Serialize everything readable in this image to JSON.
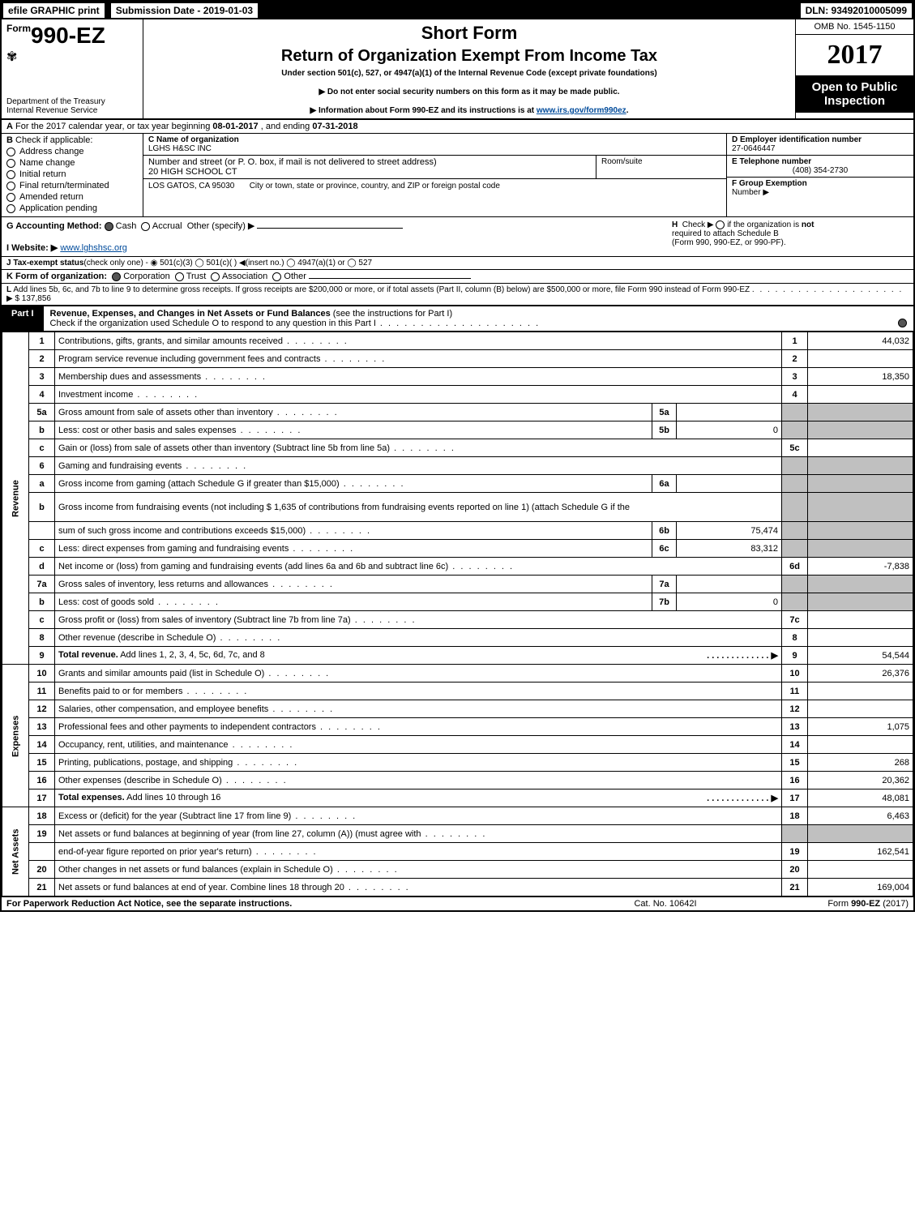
{
  "topbar": {
    "efile": "efile GRAPHIC print",
    "submission": "Submission Date - 2019-01-03",
    "dln": "DLN: 93492010005099"
  },
  "header": {
    "form_word": "Form",
    "form_number": "990-EZ",
    "dept1": "Department of the Treasury",
    "dept2": "Internal Revenue Service",
    "title1": "Short Form",
    "title2": "Return of Organization Exempt From Income Tax",
    "subtitle": "Under section 501(c), 527, or 4947(a)(1) of the Internal Revenue Code (except private foundations)",
    "note1": "▶ Do not enter social security numbers on this form as it may be made public.",
    "note2_pre": "▶ Information about Form 990-EZ and its instructions is at ",
    "note2_link": "www.irs.gov/form990ez",
    "note2_post": ".",
    "omb": "OMB No. 1545-1150",
    "year": "2017",
    "open1": "Open to Public",
    "open2": "Inspection"
  },
  "line_a": {
    "a_label": "A",
    "text_pre": "For the 2017 calendar year, or tax year beginning ",
    "begin": "08-01-2017",
    "mid": ", and ending ",
    "end": "07-31-2018"
  },
  "block_b": {
    "b_label": "B",
    "check_if": "Check if applicable:",
    "items": [
      "Address change",
      "Name change",
      "Initial return",
      "Final return/terminated",
      "Amended return",
      "Application pending"
    ]
  },
  "block_c": {
    "c_label": "C Name of organization",
    "org_name": "LGHS H&SC INC",
    "addr_label": "Number and street (or P. O. box, if mail is not delivered to street address)",
    "addr": "20 HIGH SCHOOL CT",
    "room_label": "Room/suite",
    "city_label": "City or town, state or province, country, and ZIP or foreign postal code",
    "city": "LOS GATOS, CA  95030"
  },
  "block_d": {
    "d_label": "D Employer identification number",
    "ein": "27-0646447",
    "e_label": "E Telephone number",
    "phone": "(408) 354-2730",
    "f_label": "F Group Exemption",
    "f_label2": "Number  ▶"
  },
  "block_g": {
    "g_label": "G Accounting Method:",
    "cash": "Cash",
    "accrual": "Accrual",
    "other": "Other (specify) ▶"
  },
  "block_h": {
    "h_label": "H",
    "text1": "Check ▶",
    "text2": "if the organization is ",
    "not": "not",
    "text3": "required to attach Schedule B",
    "text4": "(Form 990, 990-EZ, or 990-PF)."
  },
  "block_i": {
    "i_label": "I Website: ▶",
    "website": "www.lghshsc.org"
  },
  "line_j": {
    "j_label": "J Tax-exempt status",
    "text": "(check only one) - ◉ 501(c)(3) ◯ 501(c)(  ) ◀(insert no.) ◯ 4947(a)(1) or ◯ 527"
  },
  "line_k": {
    "k_label": "K Form of organization:",
    "corp": "Corporation",
    "trust": "Trust",
    "assoc": "Association",
    "other": "Other"
  },
  "line_l": {
    "l_label": "L",
    "text": "Add lines 5b, 6c, and 7b to line 9 to determine gross receipts. If gross receipts are $200,000 or more, or if total assets (Part II, column (B) below) are $500,000 or more, file Form 990 instead of Form 990-EZ",
    "arrow": "▶ $ 137,856"
  },
  "part1": {
    "badge": "Part I",
    "title_b": "Revenue, Expenses, and Changes in Net Assets or Fund Balances",
    "title_rest": " (see the instructions for Part I)",
    "sub": "Check if the organization used Schedule O to respond to any question in this Part I"
  },
  "sections": {
    "revenue": "Revenue",
    "expenses": "Expenses",
    "netassets": "Net Assets"
  },
  "rows": [
    {
      "sec": "rev",
      "n": "1",
      "desc": "Contributions, gifts, grants, and similar amounts received",
      "res_n": "1",
      "res_v": "44,032"
    },
    {
      "sec": "rev",
      "n": "2",
      "desc": "Program service revenue including government fees and contracts",
      "res_n": "2",
      "res_v": ""
    },
    {
      "sec": "rev",
      "n": "3",
      "desc": "Membership dues and assessments",
      "res_n": "3",
      "res_v": "18,350"
    },
    {
      "sec": "rev",
      "n": "4",
      "desc": "Investment income",
      "res_n": "4",
      "res_v": ""
    },
    {
      "sec": "rev",
      "n": "5a",
      "desc": "Gross amount from sale of assets other than inventory",
      "sub_n": "5a",
      "sub_v": "",
      "grey_res": true
    },
    {
      "sec": "rev",
      "n": "b",
      "desc": "Less: cost or other basis and sales expenses",
      "sub_n": "5b",
      "sub_v": "0",
      "grey_res": true
    },
    {
      "sec": "rev",
      "n": "c",
      "desc": "Gain or (loss) from sale of assets other than inventory (Subtract line 5b from line 5a)",
      "res_n": "5c",
      "res_v": ""
    },
    {
      "sec": "rev",
      "n": "6",
      "desc": "Gaming and fundraising events",
      "grey_sub": true,
      "grey_res": true
    },
    {
      "sec": "rev",
      "n": "a",
      "desc": "Gross income from gaming (attach Schedule G if greater than $15,000)",
      "sub_n": "6a",
      "sub_v": "",
      "grey_res": true
    },
    {
      "sec": "rev",
      "n": "b",
      "desc": "Gross income from fundraising events (not including $  1,635     of contributions from fundraising events reported on line 1) (attach Schedule G if the",
      "grey_res": true,
      "no_sub": true,
      "tall": true
    },
    {
      "sec": "rev",
      "n": "",
      "desc": "sum of such gross income and contributions exceeds $15,000)",
      "sub_n": "6b",
      "sub_v": "75,474",
      "grey_res": true
    },
    {
      "sec": "rev",
      "n": "c",
      "desc": "Less: direct expenses from gaming and fundraising events",
      "sub_n": "6c",
      "sub_v": "83,312",
      "grey_res": true
    },
    {
      "sec": "rev",
      "n": "d",
      "desc": "Net income or (loss) from gaming and fundraising events (add lines 6a and 6b and subtract line 6c)",
      "res_n": "6d",
      "res_v": "-7,838"
    },
    {
      "sec": "rev",
      "n": "7a",
      "desc": "Gross sales of inventory, less returns and allowances",
      "sub_n": "7a",
      "sub_v": "",
      "grey_res": true
    },
    {
      "sec": "rev",
      "n": "b",
      "desc": "Less: cost of goods sold",
      "sub_n": "7b",
      "sub_v": "0",
      "grey_res": true
    },
    {
      "sec": "rev",
      "n": "c",
      "desc": "Gross profit or (loss) from sales of inventory (Subtract line 7b from line 7a)",
      "res_n": "7c",
      "res_v": ""
    },
    {
      "sec": "rev",
      "n": "8",
      "desc": "Other revenue (describe in Schedule O)",
      "res_n": "8",
      "res_v": ""
    },
    {
      "sec": "rev",
      "n": "9",
      "desc_b": "Total revenue.",
      "desc": " Add lines 1, 2, 3, 4, 5c, 6d, 7c, and 8",
      "arrow": "▶",
      "res_n": "9",
      "res_v": "54,544"
    },
    {
      "sec": "exp",
      "n": "10",
      "desc": "Grants and similar amounts paid (list in Schedule O)",
      "res_n": "10",
      "res_v": "26,376"
    },
    {
      "sec": "exp",
      "n": "11",
      "desc": "Benefits paid to or for members",
      "res_n": "11",
      "res_v": ""
    },
    {
      "sec": "exp",
      "n": "12",
      "desc": "Salaries, other compensation, and employee benefits",
      "res_n": "12",
      "res_v": ""
    },
    {
      "sec": "exp",
      "n": "13",
      "desc": "Professional fees and other payments to independent contractors",
      "res_n": "13",
      "res_v": "1,075"
    },
    {
      "sec": "exp",
      "n": "14",
      "desc": "Occupancy, rent, utilities, and maintenance",
      "res_n": "14",
      "res_v": ""
    },
    {
      "sec": "exp",
      "n": "15",
      "desc": "Printing, publications, postage, and shipping",
      "res_n": "15",
      "res_v": "268"
    },
    {
      "sec": "exp",
      "n": "16",
      "desc": "Other expenses (describe in Schedule O)",
      "res_n": "16",
      "res_v": "20,362"
    },
    {
      "sec": "exp",
      "n": "17",
      "desc_b": "Total expenses.",
      "desc": " Add lines 10 through 16",
      "arrow": "▶",
      "res_n": "17",
      "res_v": "48,081"
    },
    {
      "sec": "net",
      "n": "18",
      "desc": "Excess or (deficit) for the year (Subtract line 17 from line 9)",
      "res_n": "18",
      "res_v": "6,463"
    },
    {
      "sec": "net",
      "n": "19",
      "desc": "Net assets or fund balances at beginning of year (from line 27, column (A)) (must agree with",
      "grey_res": true,
      "no_res_n": true
    },
    {
      "sec": "net",
      "n": "",
      "desc": "end-of-year figure reported on prior year's return)",
      "res_n": "19",
      "res_v": "162,541"
    },
    {
      "sec": "net",
      "n": "20",
      "desc": "Other changes in net assets or fund balances (explain in Schedule O)",
      "res_n": "20",
      "res_v": ""
    },
    {
      "sec": "net",
      "n": "21",
      "desc": "Net assets or fund balances at end of year. Combine lines 18 through 20",
      "res_n": "21",
      "res_v": "169,004"
    }
  ],
  "footer": {
    "f1": "For Paperwork Reduction Act Notice, see the separate instructions.",
    "f2": "Cat. No. 10642I",
    "f3_pre": "Form ",
    "f3_b": "990-EZ",
    "f3_post": " (2017)"
  }
}
